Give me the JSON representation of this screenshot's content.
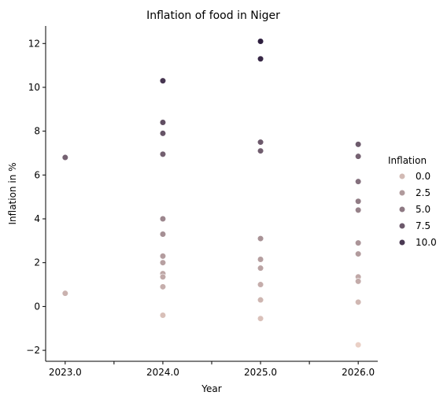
{
  "chart_data": {
    "type": "scatter",
    "title": "Inflation of food in Niger",
    "xlabel": "Year",
    "ylabel": "Inflation in %",
    "xlim": [
      2022.8,
      2026.2
    ],
    "ylim": [
      -2.5,
      12.8
    ],
    "x_ticks": [
      2023.0,
      2024.0,
      2025.0,
      2026.0
    ],
    "x_tick_labels": [
      "2023.0",
      "2024.0",
      "2025.0",
      "2026.0"
    ],
    "x_minor_ticks": [
      2023.5,
      2024.5,
      2025.5
    ],
    "y_ticks": [
      -2,
      0,
      2,
      4,
      6,
      8,
      10,
      12
    ],
    "y_tick_labels": [
      "−2",
      "0",
      "2",
      "4",
      "6",
      "8",
      "10",
      "12"
    ],
    "grid": false,
    "hue_range": [
      -1.8,
      12.1
    ],
    "color_low": "#ebd1c6",
    "color_high": "#2d1e3e",
    "legend": {
      "title": "Inflation",
      "position": "right",
      "entries": [
        {
          "label": "0.0",
          "value": 0.0
        },
        {
          "label": "2.5",
          "value": 2.5
        },
        {
          "label": "5.0",
          "value": 5.0
        },
        {
          "label": "7.5",
          "value": 7.5
        },
        {
          "label": "10.0",
          "value": 10.0
        }
      ]
    },
    "points": [
      {
        "x": 2023.0,
        "y": 6.8
      },
      {
        "x": 2023.0,
        "y": 0.6
      },
      {
        "x": 2024.0,
        "y": 10.3
      },
      {
        "x": 2024.0,
        "y": 8.4
      },
      {
        "x": 2024.0,
        "y": 7.9
      },
      {
        "x": 2024.0,
        "y": 6.95
      },
      {
        "x": 2024.0,
        "y": 4.0
      },
      {
        "x": 2024.0,
        "y": 3.3
      },
      {
        "x": 2024.0,
        "y": 2.3
      },
      {
        "x": 2024.0,
        "y": 2.0
      },
      {
        "x": 2024.0,
        "y": 1.5
      },
      {
        "x": 2024.0,
        "y": 1.35
      },
      {
        "x": 2024.0,
        "y": 0.9
      },
      {
        "x": 2024.0,
        "y": -0.4
      },
      {
        "x": 2025.0,
        "y": 12.1
      },
      {
        "x": 2025.0,
        "y": 11.3
      },
      {
        "x": 2025.0,
        "y": 7.5
      },
      {
        "x": 2025.0,
        "y": 7.1
      },
      {
        "x": 2025.0,
        "y": 3.1
      },
      {
        "x": 2025.0,
        "y": 2.15
      },
      {
        "x": 2025.0,
        "y": 1.75
      },
      {
        "x": 2025.0,
        "y": 1.0
      },
      {
        "x": 2025.0,
        "y": 0.3
      },
      {
        "x": 2025.0,
        "y": -0.55
      },
      {
        "x": 2026.0,
        "y": 7.4
      },
      {
        "x": 2026.0,
        "y": 6.85
      },
      {
        "x": 2026.0,
        "y": 5.7
      },
      {
        "x": 2026.0,
        "y": 4.8
      },
      {
        "x": 2026.0,
        "y": 4.4
      },
      {
        "x": 2026.0,
        "y": 2.9
      },
      {
        "x": 2026.0,
        "y": 2.4
      },
      {
        "x": 2026.0,
        "y": 1.35
      },
      {
        "x": 2026.0,
        "y": 1.15
      },
      {
        "x": 2026.0,
        "y": 0.2
      },
      {
        "x": 2026.0,
        "y": -1.75
      }
    ]
  }
}
